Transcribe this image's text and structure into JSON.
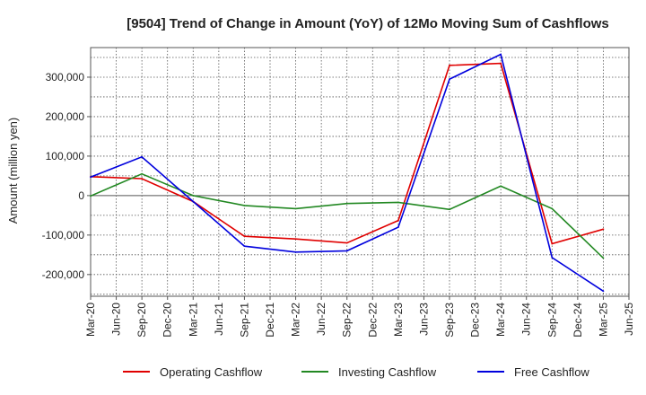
{
  "chart_data": {
    "type": "line",
    "title": "[9504]  Trend of Change in Amount (YoY) of 12Mo Moving Sum of Cashflows",
    "xlabel": "",
    "ylabel": "Amount (million yen)",
    "ylim": [
      -255000,
      375000
    ],
    "yticks": [
      300000,
      200000,
      100000,
      0,
      -100000,
      -200000
    ],
    "ytick_labels": [
      "300,000",
      "200,000",
      "100,000",
      "0",
      "-100,000",
      "-200,000"
    ],
    "categories": [
      "Mar-20",
      "Jun-20",
      "Sep-20",
      "Dec-20",
      "Mar-21",
      "Jun-21",
      "Sep-21",
      "Dec-21",
      "Mar-22",
      "Jun-22",
      "Sep-22",
      "Dec-22",
      "Mar-23",
      "Jun-23",
      "Sep-23",
      "Dec-23",
      "Mar-24",
      "Jun-24",
      "Sep-24",
      "Dec-24",
      "Mar-25",
      "Jun-25"
    ],
    "grid": true,
    "legend_position": "bottom",
    "series": [
      {
        "name": "Operating Cashflow",
        "color": "#e00000",
        "values": [
          48000,
          null,
          43000,
          null,
          -15000,
          null,
          -103000,
          null,
          -110000,
          null,
          -120000,
          null,
          -63000,
          null,
          330000,
          null,
          335000,
          null,
          -122000,
          null,
          -85000,
          null
        ]
      },
      {
        "name": "Investing Cashflow",
        "color": "#228822",
        "values": [
          -1000,
          null,
          55000,
          null,
          0,
          null,
          -25000,
          null,
          -33000,
          null,
          -20000,
          null,
          -17000,
          null,
          -35000,
          null,
          24000,
          null,
          -33000,
          null,
          -158000,
          null
        ]
      },
      {
        "name": "Free Cashflow",
        "color": "#0000dd",
        "values": [
          47000,
          null,
          98000,
          null,
          -15000,
          null,
          -128000,
          null,
          -143000,
          null,
          -140000,
          null,
          -80000,
          null,
          295000,
          null,
          358000,
          null,
          -157000,
          null,
          -242000,
          null
        ]
      }
    ]
  }
}
